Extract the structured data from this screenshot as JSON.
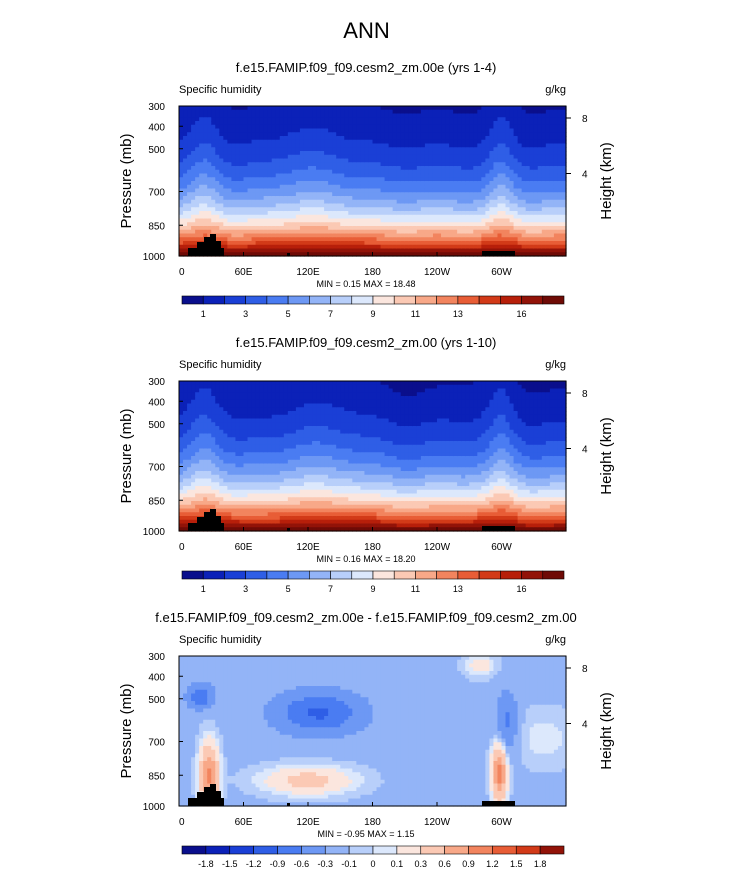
{
  "page": {
    "title": "ANN"
  },
  "chart_data": [
    {
      "type": "heatmap",
      "title": "f.e15.FAMIP.f09_f09.cesm2_zm.00e (yrs 1-4)",
      "variable": "Specific humidity",
      "units": "g/kg",
      "ylabel": "Pressure (mb)",
      "ylabel_right": "Height (km)",
      "x_ticks": [
        "0",
        "60E",
        "120E",
        "180",
        "120W",
        "60W"
      ],
      "y_ticks": [
        "300",
        "400",
        "500",
        "700",
        "850",
        "1000"
      ],
      "y_right_ticks": [
        "8",
        "4"
      ],
      "stats": "MIN =  0.15  MAX =  18.48",
      "min": 0.15,
      "max": 18.48,
      "levels": [
        1,
        2,
        3,
        4,
        5,
        6,
        7,
        8,
        9,
        10,
        11,
        12,
        13,
        14,
        15,
        16,
        17
      ],
      "colorbar_labels": [
        "1",
        "3",
        "5",
        "7",
        "9",
        "11",
        "13",
        "16"
      ],
      "colors": [
        "#0a0f8c",
        "#0b21b8",
        "#1a3fd6",
        "#2f5ee6",
        "#4a7cf2",
        "#6d98f4",
        "#93b4f7",
        "#b8cffa",
        "#dce8fc",
        "#fbe6de",
        "#fbc9b4",
        "#f8a888",
        "#f2845e",
        "#e85d36",
        "#d23a18",
        "#b71f0a",
        "#921308",
        "#6f0b06"
      ]
    },
    {
      "type": "heatmap",
      "title": "f.e15.FAMIP.f09_f09.cesm2_zm.00 (yrs 1-10)",
      "variable": "Specific humidity",
      "units": "g/kg",
      "ylabel": "Pressure (mb)",
      "ylabel_right": "Height (km)",
      "x_ticks": [
        "0",
        "60E",
        "120E",
        "180",
        "120W",
        "60W"
      ],
      "y_ticks": [
        "300",
        "400",
        "500",
        "700",
        "850",
        "1000"
      ],
      "y_right_ticks": [
        "8",
        "4"
      ],
      "stats": "MIN =  0.16  MAX =  18.20",
      "min": 0.16,
      "max": 18.2,
      "levels": [
        1,
        2,
        3,
        4,
        5,
        6,
        7,
        8,
        9,
        10,
        11,
        12,
        13,
        14,
        15,
        16,
        17
      ],
      "colorbar_labels": [
        "1",
        "3",
        "5",
        "7",
        "9",
        "11",
        "13",
        "16"
      ],
      "colors": [
        "#0a0f8c",
        "#0b21b8",
        "#1a3fd6",
        "#2f5ee6",
        "#4a7cf2",
        "#6d98f4",
        "#93b4f7",
        "#b8cffa",
        "#dce8fc",
        "#fbe6de",
        "#fbc9b4",
        "#f8a888",
        "#f2845e",
        "#e85d36",
        "#d23a18",
        "#b71f0a",
        "#921308",
        "#6f0b06"
      ]
    },
    {
      "type": "heatmap",
      "title": "f.e15.FAMIP.f09_f09.cesm2_zm.00e - f.e15.FAMIP.f09_f09.cesm2_zm.00",
      "variable": "Specific humidity",
      "units": "g/kg",
      "ylabel": "Pressure (mb)",
      "ylabel_right": "Height (km)",
      "x_ticks": [
        "0",
        "60E",
        "120E",
        "180",
        "120W",
        "60W"
      ],
      "y_ticks": [
        "300",
        "400",
        "500",
        "700",
        "850",
        "1000"
      ],
      "y_right_ticks": [
        "8",
        "4"
      ],
      "stats": "MIN = -0.95  MAX =  1.15",
      "min": -0.95,
      "max": 1.15,
      "levels": [
        -1.8,
        -1.5,
        -1.2,
        -0.9,
        -0.6,
        -0.3,
        -0.1,
        0,
        0.1,
        0.3,
        0.6,
        0.9,
        1.2,
        1.5,
        1.8
      ],
      "colorbar_labels": [
        "-1.8",
        "-1.5",
        "-1.2",
        "-0.9",
        "-0.6",
        "-0.3",
        "-0.1",
        "0",
        "0.1",
        "0.3",
        "0.6",
        "0.9",
        "1.2",
        "1.5",
        "1.8"
      ],
      "colors": [
        "#0a0f8c",
        "#0b21b8",
        "#1a3fd6",
        "#2f5ee6",
        "#4a7cf2",
        "#6d98f4",
        "#93b4f7",
        "#b8cffa",
        "#dce8fc",
        "#fbe6de",
        "#fbc9b4",
        "#f8a888",
        "#f2845e",
        "#e85d36",
        "#d23a18",
        "#921308"
      ]
    }
  ]
}
